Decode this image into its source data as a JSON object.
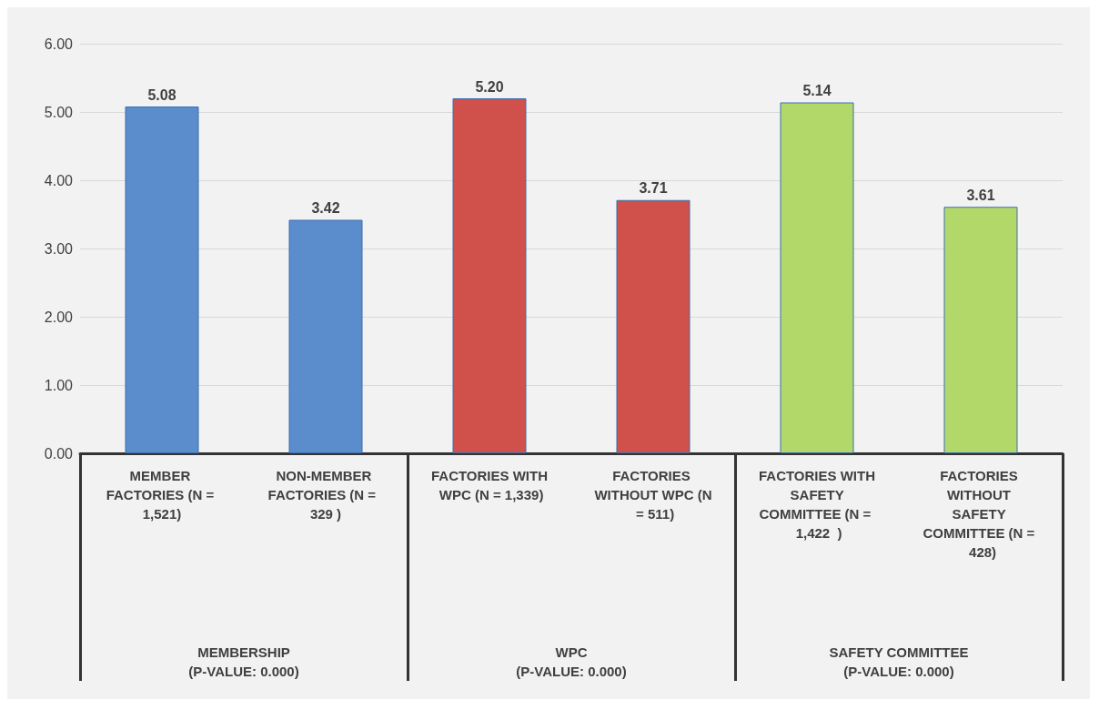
{
  "chart_data": {
    "type": "bar",
    "categories": [
      "MEMBER FACTORIES (N = 1,521)",
      "NON-MEMBER FACTORIES (N =  329 )",
      "FACTORIES WITH WPC (N = 1,339)",
      "FACTORIES WITHOUT WPC (N = 511)",
      "FACTORIES WITH SAFETY COMMITTEE (N =  1,422  )",
      "FACTORIES WITHOUT SAFETY COMMITTEE (N =  428)"
    ],
    "values": [
      5.08,
      3.42,
      5.2,
      3.71,
      5.14,
      3.61
    ],
    "colors": [
      "#5b8ccc",
      "#5b8ccc",
      "#d0504c",
      "#d0504c",
      "#b3d86a",
      "#b3d86a"
    ],
    "value_labels": [
      "5.08",
      "3.42",
      "5.20",
      "3.71",
      "5.14",
      "3.61"
    ],
    "ylim": [
      0,
      6
    ],
    "yticks": [
      {
        "value": 0,
        "label": "0.00"
      },
      {
        "value": 1,
        "label": "1.00"
      },
      {
        "value": 2,
        "label": "2.00"
      },
      {
        "value": 3,
        "label": "3.00"
      },
      {
        "value": 4,
        "label": "4.00"
      },
      {
        "value": 5,
        "label": "5.00"
      },
      {
        "value": 6,
        "label": "6.00"
      }
    ],
    "grid": "y",
    "annotations": [
      "MEMBERSHIP\n(P-VALUE: 0.000)",
      "WPC\n(P-VALUE: 0.000)",
      "SAFETY COMMITTEE\n(P-VALUE: 0.000)"
    ]
  }
}
